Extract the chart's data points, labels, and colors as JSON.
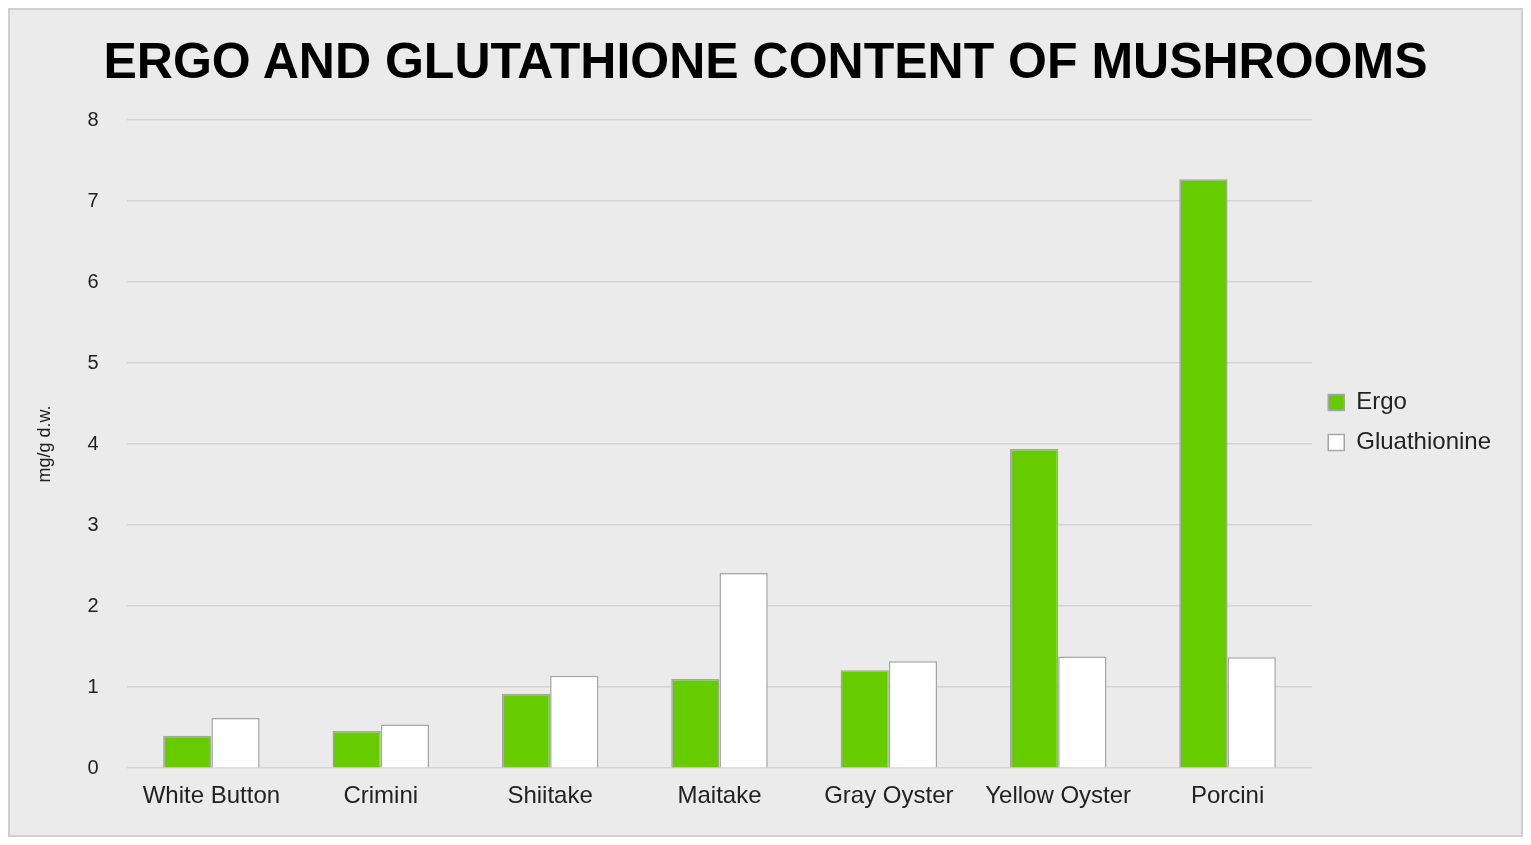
{
  "chart_data": {
    "type": "bar",
    "title": "ERGO AND GLUTATHIONE CONTENT OF MUSHROOMS",
    "ylabel": "mg/g d.w.",
    "categories": [
      "White Button",
      "Crimini",
      "Shiitake",
      "Maitake",
      "Gray Oyster",
      "Yellow Oyster",
      "Porcini"
    ],
    "series": [
      {
        "name": "Ergo",
        "color": "#66cc00",
        "values": [
          0.4,
          0.46,
          0.92,
          1.1,
          1.21,
          3.94,
          7.27
        ]
      },
      {
        "name": "Gluathionine",
        "color": "#ffffff",
        "values": [
          0.62,
          0.54,
          1.14,
          2.41,
          1.32,
          1.38,
          1.37
        ]
      }
    ],
    "ylim": [
      0,
      8
    ],
    "yticks": [
      0,
      1,
      2,
      3,
      4,
      5,
      6,
      7,
      8
    ],
    "grid": "y",
    "legend": "right"
  }
}
